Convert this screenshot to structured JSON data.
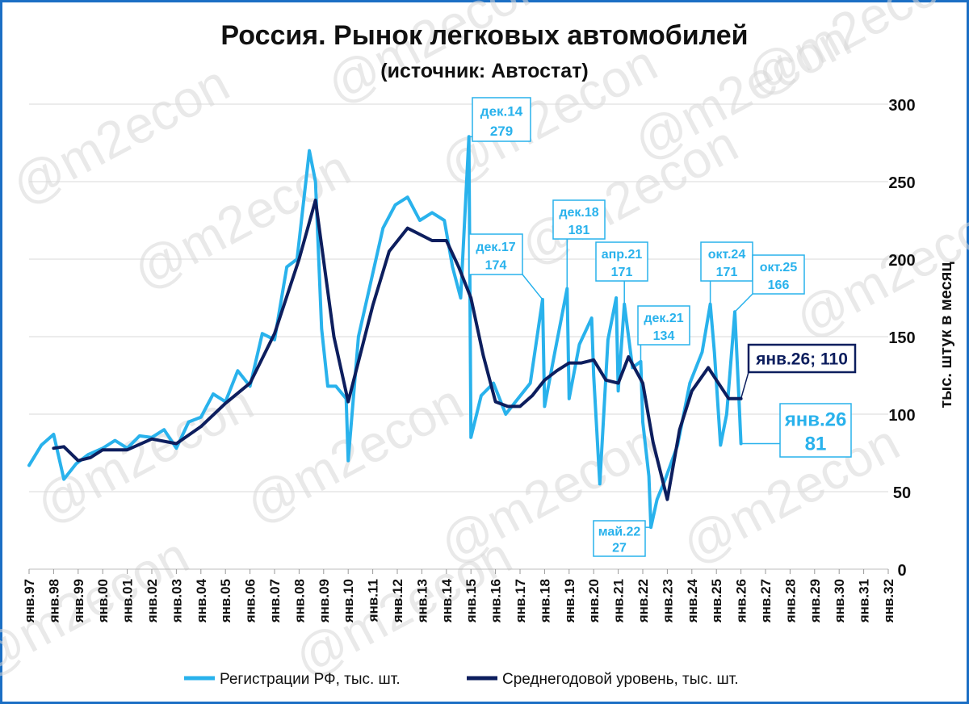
{
  "chart_data": {
    "type": "line",
    "title": "Россия. Рынок легковых автомобилей",
    "subtitle": "(источник: Автостат)",
    "ylabel": "тыс. штук в месяц",
    "ylim": [
      0,
      300
    ],
    "y_ticks": [
      "0",
      "50",
      "100",
      "150",
      "200",
      "250",
      "300"
    ],
    "x_ticks": [
      "янв.97",
      "янв.98",
      "янв.99",
      "янв.00",
      "янв.01",
      "янв.02",
      "янв.03",
      "янв.04",
      "янв.05",
      "янв.06",
      "янв.07",
      "янв.08",
      "янв.09",
      "янв.10",
      "янв.11",
      "янв.12",
      "янв.13",
      "янв.14",
      "янв.15",
      "янв.16",
      "янв.17",
      "янв.18",
      "янв.19",
      "янв.20",
      "янв.21",
      "янв.22",
      "янв.23",
      "янв.24",
      "янв.25",
      "янв.26",
      "янв.27",
      "янв.28",
      "янв.29",
      "янв.30",
      "янв.31",
      "янв.32"
    ],
    "grid": true,
    "legend_position": "bottom",
    "watermark": "@m2econ",
    "colors": {
      "monthly": "#29b2ec",
      "average": "#0d1e5e",
      "frame": "#1b6fc4"
    },
    "series": [
      {
        "name": "Регистрации РФ, тыс. шт.",
        "points": [
          [
            "1997-01",
            67
          ],
          [
            "1997-07",
            80
          ],
          [
            "1998-01",
            87
          ],
          [
            "1998-06",
            58
          ],
          [
            "1998-12",
            68
          ],
          [
            "1999-06",
            74
          ],
          [
            "2000-01",
            78
          ],
          [
            "2000-07",
            83
          ],
          [
            "2001-01",
            78
          ],
          [
            "2001-07",
            86
          ],
          [
            "2002-01",
            85
          ],
          [
            "2002-07",
            90
          ],
          [
            "2003-01",
            78
          ],
          [
            "2003-07",
            95
          ],
          [
            "2004-01",
            98
          ],
          [
            "2004-07",
            113
          ],
          [
            "2005-01",
            108
          ],
          [
            "2005-07",
            128
          ],
          [
            "2006-01",
            118
          ],
          [
            "2006-07",
            152
          ],
          [
            "2007-01",
            148
          ],
          [
            "2007-07",
            195
          ],
          [
            "2007-12",
            200
          ],
          [
            "2008-03",
            235
          ],
          [
            "2008-06",
            270
          ],
          [
            "2008-09",
            250
          ],
          [
            "2008-12",
            155
          ],
          [
            "2009-03",
            118
          ],
          [
            "2009-07",
            118
          ],
          [
            "2009-12",
            110
          ],
          [
            "2010-01",
            70
          ],
          [
            "2010-06",
            150
          ],
          [
            "2010-12",
            185
          ],
          [
            "2011-06",
            220
          ],
          [
            "2011-12",
            235
          ],
          [
            "2012-06",
            240
          ],
          [
            "2012-12",
            225
          ],
          [
            "2013-06",
            230
          ],
          [
            "2013-12",
            225
          ],
          [
            "2014-04",
            195
          ],
          [
            "2014-08",
            175
          ],
          [
            "2014-12",
            279
          ],
          [
            "2015-01",
            85
          ],
          [
            "2015-06",
            112
          ],
          [
            "2015-12",
            120
          ],
          [
            "2016-06",
            100
          ],
          [
            "2016-12",
            110
          ],
          [
            "2017-06",
            120
          ],
          [
            "2017-12",
            174
          ],
          [
            "2018-01",
            105
          ],
          [
            "2018-06",
            140
          ],
          [
            "2018-12",
            181
          ],
          [
            "2019-01",
            110
          ],
          [
            "2019-06",
            145
          ],
          [
            "2019-12",
            162
          ],
          [
            "2020-01",
            125
          ],
          [
            "2020-04",
            55
          ],
          [
            "2020-08",
            148
          ],
          [
            "2020-12",
            175
          ],
          [
            "2021-01",
            115
          ],
          [
            "2021-04",
            171
          ],
          [
            "2021-08",
            130
          ],
          [
            "2021-12",
            134
          ],
          [
            "2022-01",
            95
          ],
          [
            "2022-04",
            60
          ],
          [
            "2022-05",
            27
          ],
          [
            "2022-08",
            45
          ],
          [
            "2022-12",
            58
          ],
          [
            "2023-06",
            80
          ],
          [
            "2023-12",
            120
          ],
          [
            "2024-06",
            140
          ],
          [
            "2024-10",
            171
          ],
          [
            "2024-12",
            140
          ],
          [
            "2025-03",
            80
          ],
          [
            "2025-06",
            100
          ],
          [
            "2025-10",
            166
          ],
          [
            "2025-12",
            110
          ],
          [
            "2026-01",
            81
          ]
        ]
      },
      {
        "name": "Среднегодовой уровень, тыс. шт.",
        "points": [
          [
            "1998-01",
            78
          ],
          [
            "1998-06",
            79
          ],
          [
            "1999-01",
            70
          ],
          [
            "1999-07",
            72
          ],
          [
            "2000-01",
            77
          ],
          [
            "2001-01",
            77
          ],
          [
            "2002-01",
            84
          ],
          [
            "2003-01",
            81
          ],
          [
            "2004-01",
            92
          ],
          [
            "2005-01",
            107
          ],
          [
            "2006-01",
            120
          ],
          [
            "2007-01",
            152
          ],
          [
            "2008-01",
            200
          ],
          [
            "2008-09",
            238
          ],
          [
            "2009-06",
            150
          ],
          [
            "2010-01",
            108
          ],
          [
            "2011-01",
            170
          ],
          [
            "2011-09",
            205
          ],
          [
            "2012-06",
            220
          ],
          [
            "2013-06",
            212
          ],
          [
            "2014-01",
            212
          ],
          [
            "2014-07",
            195
          ],
          [
            "2015-01",
            175
          ],
          [
            "2015-07",
            138
          ],
          [
            "2016-01",
            108
          ],
          [
            "2016-07",
            105
          ],
          [
            "2017-01",
            105
          ],
          [
            "2017-07",
            112
          ],
          [
            "2018-01",
            122
          ],
          [
            "2018-07",
            128
          ],
          [
            "2019-01",
            133
          ],
          [
            "2019-07",
            133
          ],
          [
            "2020-01",
            135
          ],
          [
            "2020-07",
            122
          ],
          [
            "2021-01",
            120
          ],
          [
            "2021-06",
            137
          ],
          [
            "2022-01",
            120
          ],
          [
            "2022-06",
            82
          ],
          [
            "2023-01",
            45
          ],
          [
            "2023-07",
            90
          ],
          [
            "2024-01",
            115
          ],
          [
            "2024-09",
            130
          ],
          [
            "2025-01",
            122
          ],
          [
            "2025-07",
            110
          ],
          [
            "2026-01",
            110
          ]
        ]
      }
    ],
    "annotations": [
      {
        "id": "dec14",
        "date": "2014-12",
        "value": 279,
        "label": "дек.14",
        "value_label": "279"
      },
      {
        "id": "dec17",
        "date": "2017-12",
        "value": 174,
        "label": "дек.17",
        "value_label": "174"
      },
      {
        "id": "dec18",
        "date": "2018-12",
        "value": 181,
        "label": "дек.18",
        "value_label": "181"
      },
      {
        "id": "apr21",
        "date": "2021-04",
        "value": 171,
        "label": "апр.21",
        "value_label": "171"
      },
      {
        "id": "dec21",
        "date": "2021-12",
        "value": 134,
        "label": "дек.21",
        "value_label": "134"
      },
      {
        "id": "may22",
        "date": "2022-05",
        "value": 27,
        "label": "май.22",
        "value_label": "27"
      },
      {
        "id": "oct24",
        "date": "2024-10",
        "value": 171,
        "label": "окт.24",
        "value_label": "171"
      },
      {
        "id": "oct25",
        "date": "2025-10",
        "value": 166,
        "label": "окт.25",
        "value_label": "166"
      },
      {
        "id": "jan26",
        "date": "2026-01",
        "value": 81,
        "label": "янв.26",
        "value_label": "81"
      },
      {
        "id": "jan26avg",
        "date": "2026-01",
        "value": 110,
        "label": "янв.26; 110"
      }
    ]
  }
}
